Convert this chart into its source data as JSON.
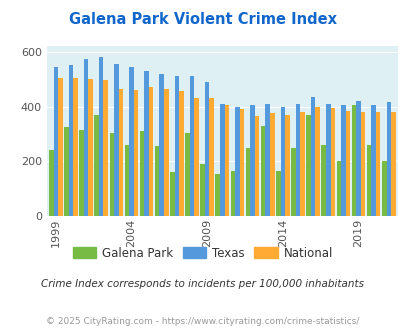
{
  "title": "Galena Park Violent Crime Index",
  "subtitle": "Crime Index corresponds to incidents per 100,000 inhabitants",
  "footer": "© 2025 CityRating.com - https://www.cityrating.com/crime-statistics/",
  "years": [
    1999,
    2000,
    2001,
    2002,
    2003,
    2004,
    2005,
    2006,
    2007,
    2008,
    2009,
    2010,
    2011,
    2012,
    2013,
    2014,
    2015,
    2016,
    2017,
    2018,
    2019,
    2020,
    2021
  ],
  "galena_park": [
    240,
    325,
    315,
    370,
    305,
    260,
    310,
    255,
    160,
    305,
    190,
    155,
    165,
    250,
    330,
    165,
    250,
    370,
    260,
    200,
    405,
    260,
    200
  ],
  "texas": [
    545,
    550,
    575,
    580,
    555,
    545,
    530,
    520,
    510,
    510,
    490,
    410,
    400,
    405,
    410,
    400,
    410,
    435,
    410,
    405,
    420,
    405,
    415
  ],
  "national": [
    505,
    505,
    500,
    495,
    465,
    460,
    470,
    465,
    455,
    430,
    430,
    405,
    390,
    365,
    375,
    370,
    380,
    400,
    395,
    385,
    380,
    380,
    380
  ],
  "tick_years": [
    1999,
    2004,
    2009,
    2014,
    2019
  ],
  "ylim": [
    0,
    620
  ],
  "yticks": [
    0,
    200,
    400,
    600
  ],
  "colors": {
    "galena_park": "#77bb44",
    "texas": "#5599dd",
    "national": "#ffaa33"
  },
  "bg_color": "#dff0f5",
  "title_color": "#1166cc",
  "subtitle_color": "#333333",
  "footer_color": "#999999",
  "legend_labels": [
    "Galena Park",
    "Texas",
    "National"
  ]
}
